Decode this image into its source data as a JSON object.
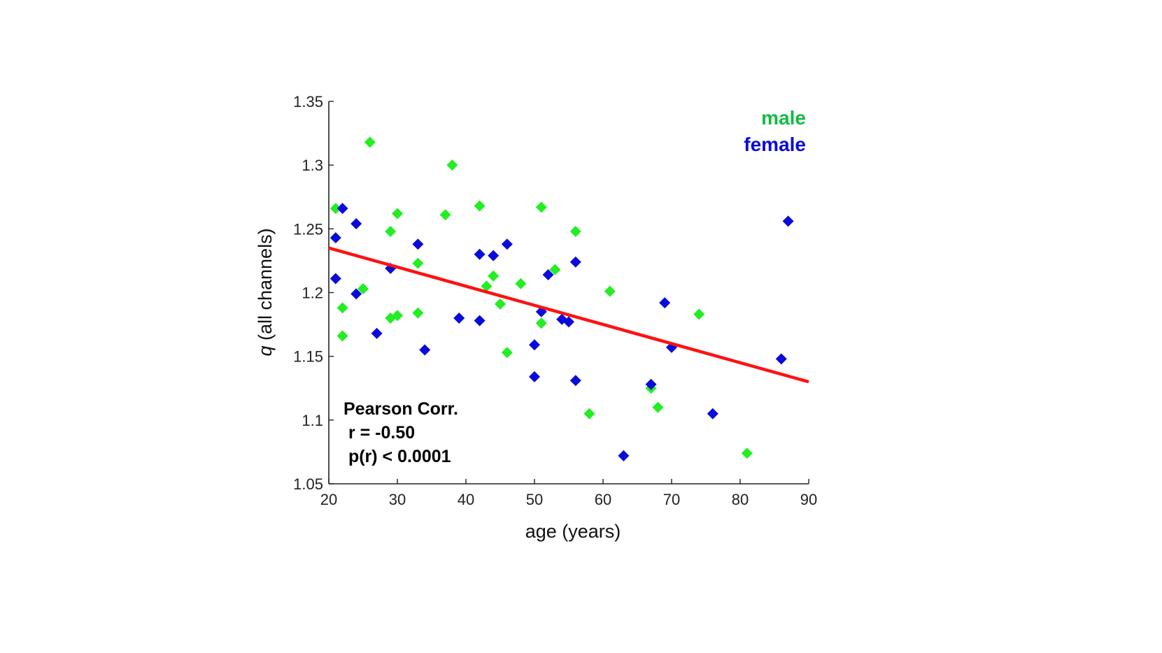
{
  "chart_data": {
    "type": "scatter",
    "title": "",
    "xlabel": "age (years)",
    "ylabel_symbol": "q",
    "ylabel_rest": " (all channels)",
    "xlim": [
      20,
      90
    ],
    "ylim": [
      1.05,
      1.35
    ],
    "xticks": [
      20,
      30,
      40,
      50,
      60,
      70,
      80,
      90
    ],
    "xtick_labels": [
      "20",
      "30",
      "40",
      "50",
      "60",
      "70",
      "80",
      "90"
    ],
    "yticks": [
      1.05,
      1.1,
      1.15,
      1.2,
      1.25,
      1.3,
      1.35
    ],
    "ytick_labels": [
      "1.05",
      "1.1",
      "1.15",
      "1.2",
      "1.25",
      "1.3",
      "1.35"
    ],
    "grid": false,
    "legend_position": "top-right",
    "series": [
      {
        "name": "male",
        "color": "#22ee22",
        "label_color": "#11bb44",
        "marker": "diamond",
        "points": [
          [
            21,
            1.266
          ],
          [
            22,
            1.188
          ],
          [
            22,
            1.166
          ],
          [
            25,
            1.203
          ],
          [
            26,
            1.318
          ],
          [
            29,
            1.248
          ],
          [
            29,
            1.18
          ],
          [
            30,
            1.262
          ],
          [
            30,
            1.182
          ],
          [
            33,
            1.223
          ],
          [
            33,
            1.184
          ],
          [
            37,
            1.261
          ],
          [
            38,
            1.3
          ],
          [
            42,
            1.268
          ],
          [
            43,
            1.205
          ],
          [
            44,
            1.213
          ],
          [
            45,
            1.191
          ],
          [
            46,
            1.153
          ],
          [
            48,
            1.207
          ],
          [
            51,
            1.267
          ],
          [
            51,
            1.176
          ],
          [
            53,
            1.218
          ],
          [
            56,
            1.248
          ],
          [
            58,
            1.105
          ],
          [
            61,
            1.201
          ],
          [
            67,
            1.125
          ],
          [
            68,
            1.11
          ],
          [
            74,
            1.183
          ],
          [
            81,
            1.074
          ]
        ]
      },
      {
        "name": "female",
        "color": "#0a0adb",
        "label_color": "#0a0adb",
        "marker": "diamond",
        "points": [
          [
            21,
            1.243
          ],
          [
            21,
            1.211
          ],
          [
            22,
            1.266
          ],
          [
            24,
            1.254
          ],
          [
            24,
            1.199
          ],
          [
            27,
            1.168
          ],
          [
            29,
            1.219
          ],
          [
            33,
            1.238
          ],
          [
            34,
            1.155
          ],
          [
            39,
            1.18
          ],
          [
            42,
            1.23
          ],
          [
            42,
            1.178
          ],
          [
            44,
            1.229
          ],
          [
            46,
            1.238
          ],
          [
            50,
            1.159
          ],
          [
            50,
            1.134
          ],
          [
            51,
            1.185
          ],
          [
            52,
            1.214
          ],
          [
            54,
            1.179
          ],
          [
            55,
            1.177
          ],
          [
            56,
            1.224
          ],
          [
            56,
            1.131
          ],
          [
            63,
            1.072
          ],
          [
            67,
            1.128
          ],
          [
            69,
            1.192
          ],
          [
            70,
            1.157
          ],
          [
            76,
            1.105
          ],
          [
            86,
            1.148
          ],
          [
            87,
            1.256
          ]
        ]
      }
    ],
    "fit_line": {
      "color": "#ff1111",
      "x": [
        20,
        90
      ],
      "y": [
        1.235,
        1.13
      ]
    },
    "annotations": {
      "title": "Pearson Corr.",
      "r": " r = -0.50",
      "p": " p(r) < 0.0001"
    }
  }
}
